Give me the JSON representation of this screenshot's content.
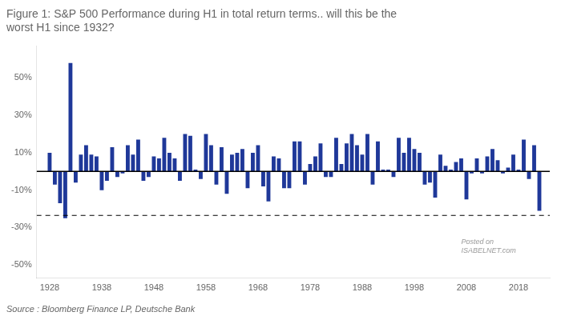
{
  "chart_data": {
    "type": "bar",
    "title": "Figure 1: S&P 500 Performance during H1 in total return terms.. will this be the\nworst H1 since 1932?",
    "source": "Source : Bloomberg Finance LP, Deutsche Bank",
    "x": [
      1928,
      1929,
      1930,
      1931,
      1932,
      1933,
      1934,
      1935,
      1936,
      1937,
      1938,
      1939,
      1940,
      1941,
      1942,
      1943,
      1944,
      1945,
      1946,
      1947,
      1948,
      1949,
      1950,
      1951,
      1952,
      1953,
      1954,
      1955,
      1956,
      1957,
      1958,
      1959,
      1960,
      1961,
      1962,
      1963,
      1964,
      1965,
      1966,
      1967,
      1968,
      1969,
      1970,
      1971,
      1972,
      1973,
      1974,
      1975,
      1976,
      1977,
      1978,
      1979,
      1980,
      1981,
      1982,
      1983,
      1984,
      1985,
      1986,
      1987,
      1988,
      1989,
      1990,
      1991,
      1992,
      1993,
      1994,
      1995,
      1996,
      1997,
      1998,
      1999,
      2000,
      2001,
      2002,
      2003,
      2004,
      2005,
      2006,
      2007,
      2008,
      2009,
      2010,
      2011,
      2012,
      2013,
      2014,
      2015,
      2016,
      2017,
      2018,
      2019,
      2020,
      2021,
      2022
    ],
    "values": [
      0.1,
      -0.07,
      -0.17,
      -0.25,
      0.58,
      -0.06,
      0.09,
      0.14,
      0.09,
      0.08,
      -0.1,
      -0.05,
      0.13,
      -0.03,
      -0.01,
      0.14,
      0.09,
      0.17,
      -0.05,
      -0.03,
      0.08,
      0.07,
      0.18,
      0.1,
      0.07,
      -0.05,
      0.2,
      0.19,
      0.01,
      -0.04,
      0.2,
      0.14,
      -0.07,
      0.13,
      -0.12,
      0.09,
      0.1,
      0.12,
      -0.09,
      0.1,
      0.14,
      -0.08,
      -0.16,
      0.08,
      0.07,
      -0.09,
      -0.09,
      0.16,
      0.16,
      -0.07,
      0.04,
      0.08,
      0.15,
      -0.03,
      -0.03,
      0.18,
      0.04,
      0.15,
      0.2,
      0.14,
      0.09,
      0.2,
      -0.07,
      0.16,
      0.01,
      0.01,
      -0.03,
      0.18,
      0.1,
      0.18,
      0.12,
      0.1,
      -0.07,
      -0.06,
      -0.14,
      0.09,
      0.03,
      0.01,
      0.05,
      0.07,
      -0.15,
      -0.01,
      0.07,
      -0.01,
      0.08,
      0.12,
      0.06,
      -0.01,
      0.02,
      0.09,
      0.01,
      0.17,
      -0.04,
      0.14,
      -0.21
    ],
    "color": "#1F3899",
    "xlim": [
      1925.5,
      2024.0
    ],
    "xticks": [
      1928,
      1938,
      1948,
      1958,
      1968,
      1978,
      1988,
      1998,
      2008,
      2018
    ],
    "ylim": [
      -0.57,
      0.67
    ],
    "yticks": [
      {
        "value": -0.5,
        "label": "-50%"
      },
      {
        "value": -0.3,
        "label": "-30%"
      },
      {
        "value": -0.1,
        "label": "-10%"
      },
      {
        "value": 0.1,
        "label": "10%"
      },
      {
        "value": 0.3,
        "label": "30%"
      },
      {
        "value": 0.5,
        "label": "50%"
      }
    ],
    "grid": false,
    "hlines": [
      {
        "value": -0.235,
        "line_style": "dashed"
      },
      {
        "value": 0,
        "line_style": "solid"
      }
    ],
    "annotations": [
      {
        "text": "Posted on\nISABELNET.com",
        "x": 2007,
        "y": -0.4
      }
    ]
  }
}
